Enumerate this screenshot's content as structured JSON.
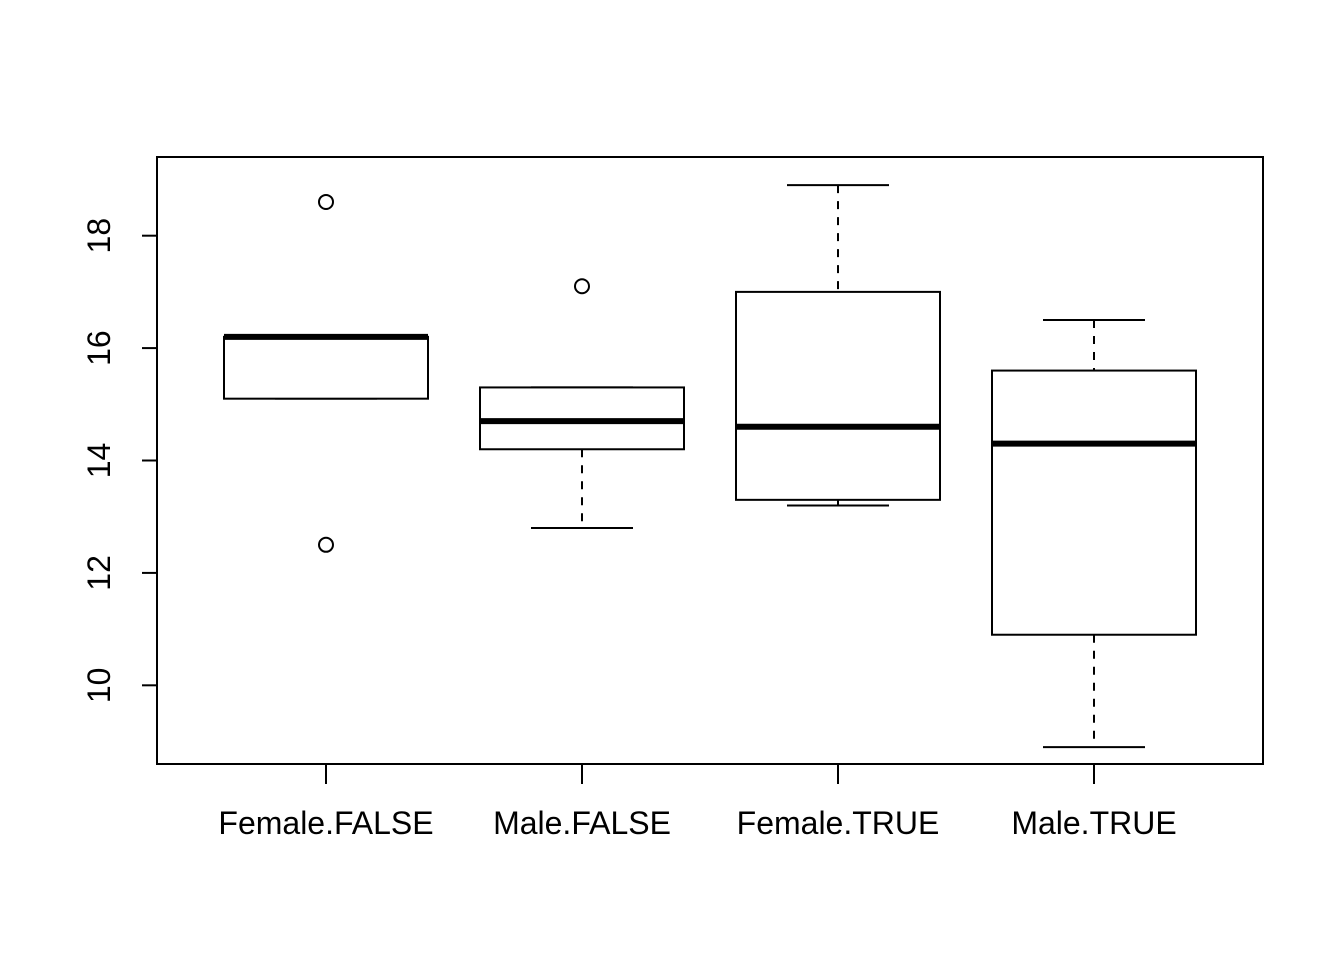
{
  "chart_data": {
    "type": "boxplot",
    "title": "",
    "xlabel": "",
    "ylabel": "",
    "categories": [
      "Female.FALSE",
      "Male.FALSE",
      "Female.TRUE",
      "Male.TRUE"
    ],
    "ylim": [
      8.6,
      19.4
    ],
    "y_ticks": [
      10,
      12,
      14,
      16,
      18
    ],
    "y_tick_labels": [
      "10",
      "12",
      "14",
      "16",
      "18"
    ],
    "grid": false,
    "legend": "none",
    "boxes": [
      {
        "category": "Female.FALSE",
        "whisker_low": 15.1,
        "q1": 15.1,
        "median": 16.2,
        "q3": 16.2,
        "whisker_high": 16.2,
        "outliers": [
          18.6,
          12.5
        ]
      },
      {
        "category": "Male.FALSE",
        "whisker_low": 12.8,
        "q1": 14.2,
        "median": 14.7,
        "q3": 15.3,
        "whisker_high": 15.3,
        "outliers": [
          17.1
        ]
      },
      {
        "category": "Female.TRUE",
        "whisker_low": 13.2,
        "q1": 13.3,
        "median": 14.6,
        "q3": 17.0,
        "whisker_high": 18.9,
        "outliers": []
      },
      {
        "category": "Male.TRUE",
        "whisker_low": 8.9,
        "q1": 10.9,
        "median": 14.3,
        "q3": 15.6,
        "whisker_high": 16.5,
        "outliers": []
      }
    ]
  }
}
